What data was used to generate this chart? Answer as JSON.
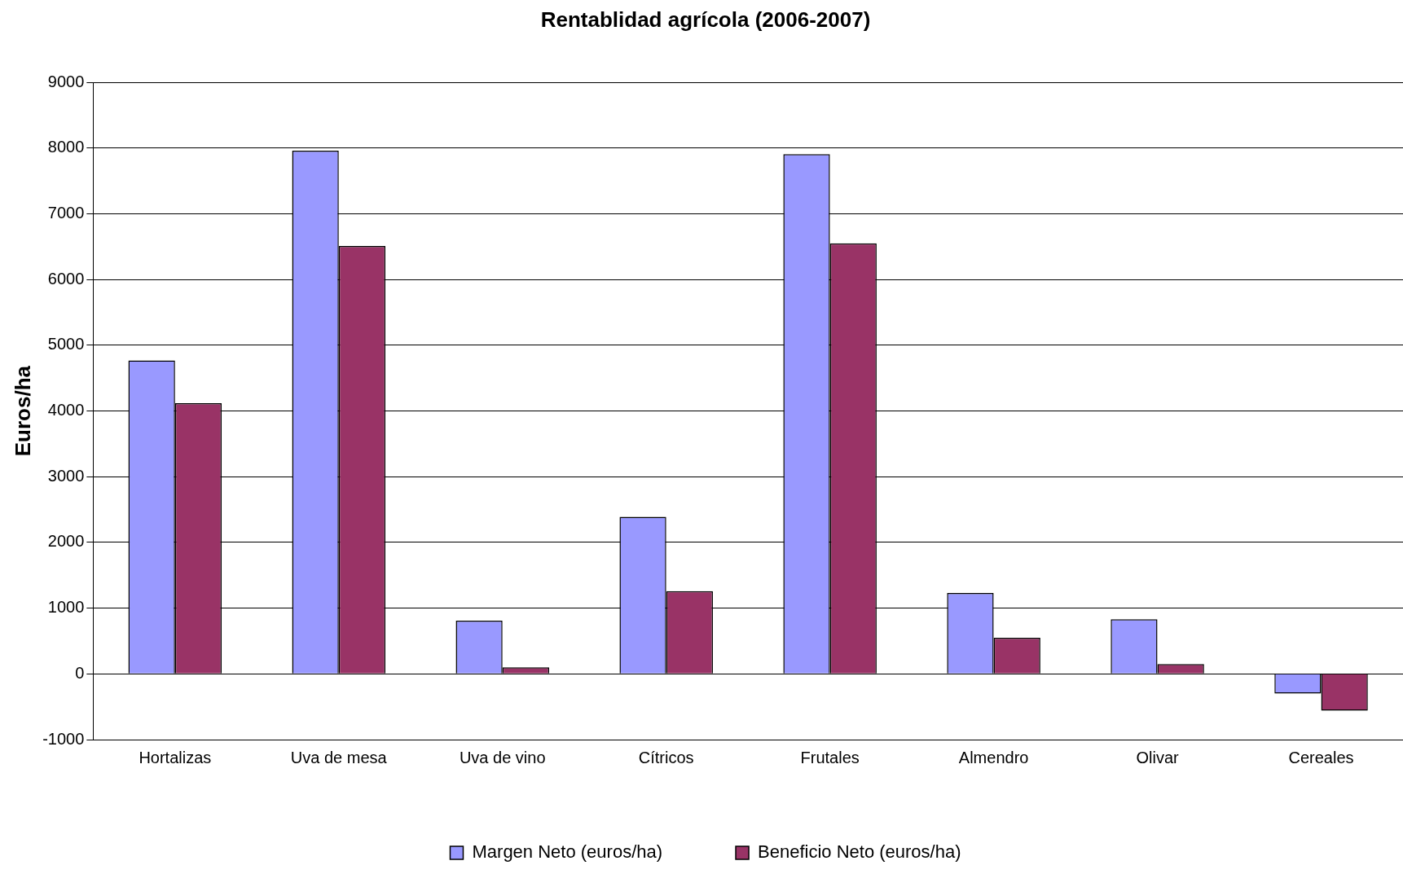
{
  "chart_data": {
    "type": "bar",
    "title": "Rentablidad agrícola (2006-2007)",
    "ylabel": "Euros/ha",
    "categories": [
      "Hortalizas",
      "Uva de mesa",
      "Uva de vino",
      "Cítricos",
      "Frutales",
      "Almendro",
      "Olivar",
      "Cereales"
    ],
    "series": [
      {
        "name": "Margen Neto (euros/ha)",
        "color": "#9999ff",
        "values": [
          4770,
          7960,
          810,
          2390,
          7910,
          1230,
          830,
          -300
        ]
      },
      {
        "name": "Beneficio Neto (euros/ha)",
        "color": "#993366",
        "values": [
          4120,
          6510,
          100,
          1260,
          6550,
          550,
          150,
          -560
        ]
      }
    ],
    "ylim": [
      -1000,
      9000
    ],
    "yticks": [
      -1000,
      0,
      1000,
      2000,
      3000,
      4000,
      5000,
      6000,
      7000,
      8000,
      9000
    ],
    "grid": "y",
    "legend": "bottom"
  }
}
